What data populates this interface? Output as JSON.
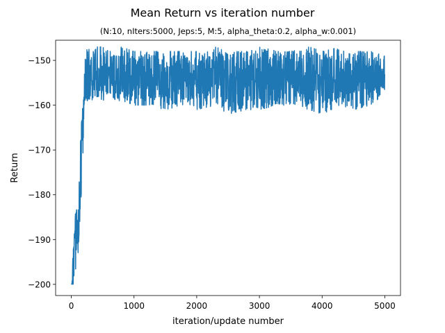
{
  "chart_data": {
    "type": "line",
    "title": "Mean Return vs iteration number",
    "subtitle": "(N:10, nIters:5000, Jeps:5, M:5, alpha_theta:0.2, alpha_w:0.001)",
    "xlabel": "iteration/update number",
    "ylabel": "Return",
    "xlim": [
      -250,
      5250
    ],
    "ylim": [
      -202.5,
      -145.5
    ],
    "xticks": [
      0,
      1000,
      2000,
      3000,
      4000,
      5000
    ],
    "xtick_labels": [
      "0",
      "1000",
      "2000",
      "3000",
      "4000",
      "5000"
    ],
    "yticks": [
      -200,
      -190,
      -180,
      -170,
      -160,
      -150
    ],
    "ytick_labels": [
      "−200",
      "−190",
      "−180",
      "−170",
      "−160",
      "−150"
    ],
    "grid": false,
    "line_color": "#1f77b4",
    "series": [
      {
        "x": [
          0,
          30,
          60,
          80,
          100,
          120,
          140,
          160,
          180,
          200,
          220,
          240,
          260,
          300,
          350,
          400,
          500,
          600,
          700,
          800,
          1000,
          1200,
          1500,
          1800,
          2000,
          2300,
          2500,
          2800,
          3000,
          3300,
          3500,
          3800,
          4000,
          4300,
          4500,
          4800,
          5000
        ],
        "values": [
          -200,
          -199,
          -192,
          -183,
          -189,
          -184,
          -176,
          -168,
          -163,
          -160,
          -157,
          -155,
          -154,
          -154,
          -154,
          -154,
          -154,
          -154,
          -154,
          -154,
          -154,
          -154,
          -154,
          -154,
          -154,
          -154,
          -154,
          -154,
          -154,
          -154,
          -154,
          -154,
          -154,
          -154,
          -154,
          -154,
          -153
        ]
      }
    ],
    "noise_band": {
      "x": [
        0,
        30,
        60,
        80,
        100,
        120,
        140,
        160,
        180,
        200,
        220,
        240,
        260,
        300,
        350,
        400,
        500,
        600,
        700,
        800,
        1000,
        1200,
        1500,
        1800,
        2000,
        2300,
        2500,
        2800,
        3000,
        3300,
        3500,
        3800,
        4000,
        4300,
        4500,
        4800,
        5000
      ],
      "upper": [
        -196,
        -193,
        -184,
        -182,
        -185,
        -178,
        -170,
        -162,
        -160,
        -158,
        -148,
        -147,
        -147,
        -148,
        -148,
        -147,
        -147,
        -148,
        -148,
        -147,
        -148,
        -148,
        -148,
        -148,
        -148,
        -147,
        -148,
        -148,
        -147,
        -148,
        -148,
        -147,
        -148,
        -147,
        -148,
        -148,
        -149
      ],
      "lower": [
        -200,
        -200,
        -199,
        -195,
        -196,
        -190,
        -187,
        -194,
        -182,
        -180,
        -159,
        -159,
        -159,
        -159,
        -159,
        -158,
        -159,
        -158,
        -159,
        -159,
        -160,
        -160,
        -161,
        -160,
        -161,
        -160,
        -162,
        -161,
        -161,
        -160,
        -160,
        -161,
        -162,
        -160,
        -161,
        -160,
        -157
      ]
    }
  }
}
